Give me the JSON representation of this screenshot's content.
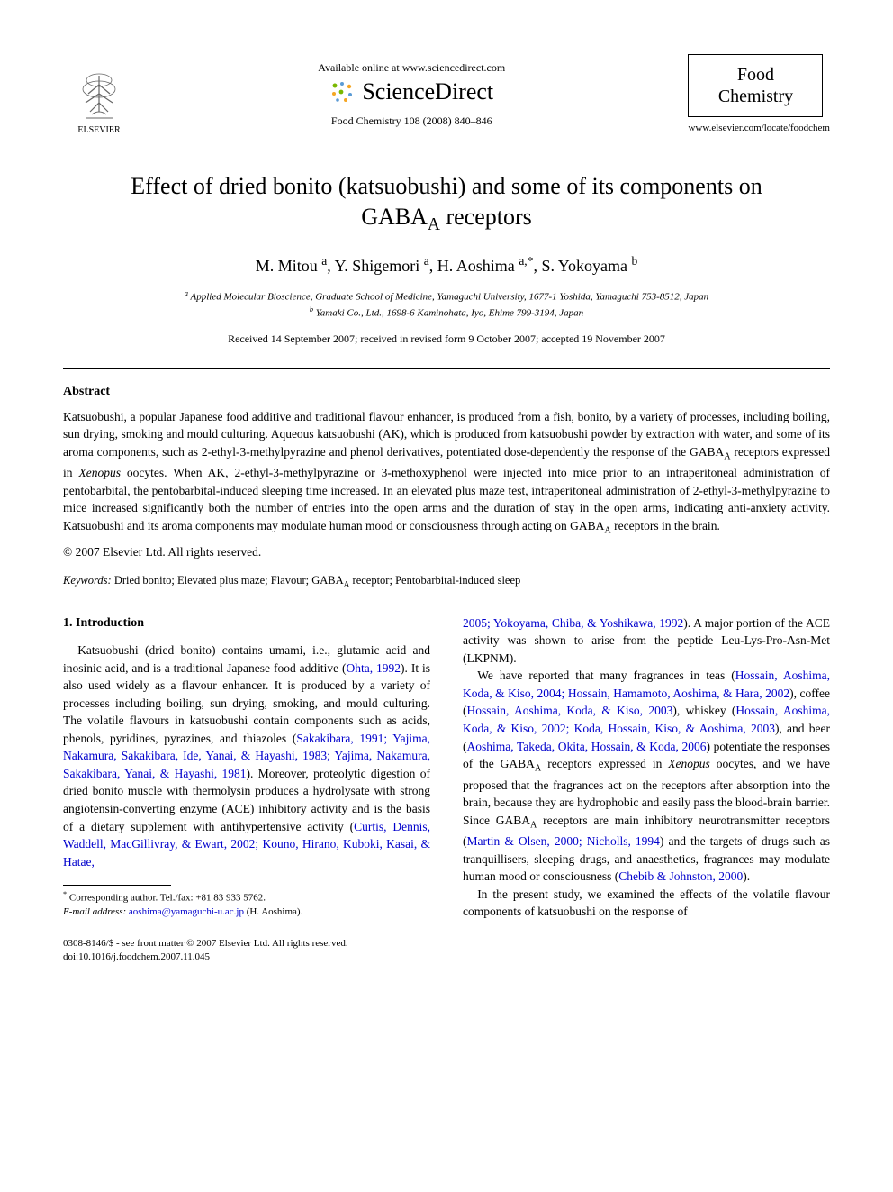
{
  "header": {
    "available_online": "Available online at www.sciencedirect.com",
    "sciencedirect": "ScienceDirect",
    "citation": "Food Chemistry 108 (2008) 840–846",
    "elsevier_label": "ELSEVIER",
    "journal_name_line1": "Food",
    "journal_name_line2": "Chemistry",
    "journal_url": "www.elsevier.com/locate/foodchem"
  },
  "article": {
    "title_html": "Effect of dried bonito (katsuobushi) and some of its components on GABA<sub>A</sub> receptors",
    "authors_html": "M. Mitou <sup>a</sup>, Y. Shigemori <sup>a</sup>, H. Aoshima <sup>a,*</sup>, S. Yokoyama <sup>b</sup>",
    "affiliations": [
      "<sup>a</sup> Applied Molecular Bioscience, Graduate School of Medicine, Yamaguchi University, 1677-1 Yoshida, Yamaguchi 753-8512, Japan",
      "<sup>b</sup> Yamaki Co., Ltd., 1698-6 Kaminohata, Iyo, Ehime 799-3194, Japan"
    ],
    "dates": "Received 14 September 2007; received in revised form 9 October 2007; accepted 19 November 2007"
  },
  "abstract": {
    "heading": "Abstract",
    "body_html": "Katsuobushi, a popular Japanese food additive and traditional flavour enhancer, is produced from a fish, bonito, by a variety of processes, including boiling, sun drying, smoking and mould culturing. Aqueous katsuobushi (AK), which is produced from katsuobushi powder by extraction with water, and some of its aroma components, such as 2-ethyl-3-methylpyrazine and phenol derivatives, potentiated dose-dependently the response of the GABA<sub>A</sub> receptors expressed in <i>Xenopus</i> oocytes. When AK, 2-ethyl-3-methylpyrazine or 3-methoxyphenol were injected into mice prior to an intraperitoneal administration of pentobarbital, the pentobarbital-induced sleeping time increased. In an elevated plus maze test, intraperitoneal administration of 2-ethyl-3-methylpyrazine to mice increased significantly both the number of entries into the open arms and the duration of stay in the open arms, indicating anti-anxiety activity. Katsuobushi and its aroma components may modulate human mood or consciousness through acting on GABA<sub>A</sub> receptors in the brain.",
    "copyright": "© 2007 Elsevier Ltd. All rights reserved."
  },
  "keywords": {
    "label": "Keywords:",
    "text_html": "Dried bonito; Elevated plus maze; Flavour; GABA<sub>A</sub> receptor; Pentobarbital-induced sleep"
  },
  "body": {
    "section_number": "1.",
    "section_title": "Introduction",
    "col1_para1_html": "Katsuobushi (dried bonito) contains umami, i.e., glutamic acid and inosinic acid, and is a traditional Japanese food additive (<span class=\"ref-link\">Ohta, 1992</span>). It is also used widely as a flavour enhancer. It is produced by a variety of processes including boiling, sun drying, smoking, and mould culturing. The volatile flavours in katsuobushi contain components such as acids, phenols, pyridines, pyrazines, and thiazoles (<span class=\"ref-link\">Sakakibara, 1991; Yajima, Nakamura, Sakakibara, Ide, Yanai, &amp; Hayashi, 1983; Yajima, Nakamura, Sakakibara, Yanai, &amp; Hayashi, 1981</span>). Moreover, proteolytic digestion of dried bonito muscle with thermolysin produces a hydrolysate with strong angiotensin-converting enzyme (ACE) inhibitory activity and is the basis of a dietary supplement with antihypertensive activity (<span class=\"ref-link\">Curtis, Dennis, Waddell, MacGillivray, &amp; Ewart, 2002; Kouno, Hirano, Kuboki, Kasai, &amp; Hatae,</span>",
    "col2_para1_html": "<span class=\"ref-link\">2005; Yokoyama, Chiba, &amp; Yoshikawa, 1992</span>). A major portion of the ACE activity was shown to arise from the peptide Leu-Lys-Pro-Asn-Met (LKPNM).",
    "col2_para2_html": "We have reported that many fragrances in teas (<span class=\"ref-link\">Hossain, Aoshima, Koda, &amp; Kiso, 2004; Hossain, Hamamoto, Aoshima, &amp; Hara, 2002</span>), coffee (<span class=\"ref-link\">Hossain, Aoshima, Koda, &amp; Kiso, 2003</span>), whiskey (<span class=\"ref-link\">Hossain, Aoshima, Koda, &amp; Kiso, 2002; Koda, Hossain, Kiso, &amp; Aoshima, 2003</span>), and beer (<span class=\"ref-link\">Aoshima, Takeda, Okita, Hossain, &amp; Koda, 2006</span>) potentiate the responses of the GABA<sub>A</sub> receptors expressed in <i>Xenopus</i> oocytes, and we have proposed that the fragrances act on the receptors after absorption into the brain, because they are hydrophobic and easily pass the blood-brain barrier. Since GABA<sub>A</sub> receptors are main inhibitory neurotransmitter receptors (<span class=\"ref-link\">Martin &amp; Olsen, 2000; Nicholls, 1994</span>) and the targets of drugs such as tranquillisers, sleeping drugs, and anaesthetics, fragrances may modulate human mood or consciousness (<span class=\"ref-link\">Chebib &amp; Johnston, 2000</span>).",
    "col2_para3_html": "In the present study, we examined the effects of the volatile flavour components of katsuobushi on the response of"
  },
  "footnotes": {
    "corresponding": "Corresponding author. Tel./fax: +81 83 933 5762.",
    "email_label": "E-mail address:",
    "email": "aoshima@yamaguchi-u.ac.jp",
    "email_name": "(H. Aoshima)."
  },
  "footer": {
    "line1": "0308-8146/$ - see front matter © 2007 Elsevier Ltd. All rights reserved.",
    "line2": "doi:10.1016/j.foodchem.2007.11.045"
  },
  "colors": {
    "text": "#000000",
    "link": "#0000cc",
    "background": "#ffffff",
    "elsevier_orange": "#e87722",
    "sd_green": "#7ab800",
    "sd_blue": "#5b9bd5",
    "sd_orange": "#f5a623"
  }
}
